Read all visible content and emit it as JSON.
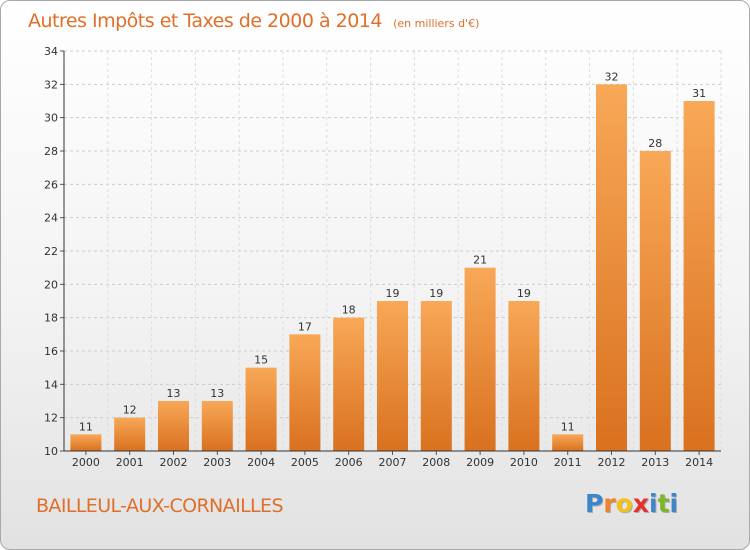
{
  "header": {
    "title": "Autres Impôts et Taxes de 2000 à 2014",
    "subtitle": "(en milliers d'€)"
  },
  "footer": {
    "commune": "BAILLEUL-AUX-CORNAILLES",
    "logo_letters": [
      "P",
      "r",
      "o",
      "x",
      "i",
      "t",
      "i"
    ],
    "logo_colors": [
      "#3f86c9",
      "#f0832a",
      "#f3c21a",
      "#e4312e",
      "#3f86c9",
      "#7cb72b",
      "#3f86c9"
    ]
  },
  "colors": {
    "bar_light": "#f8a857",
    "bar_dark": "#d9711f",
    "title": "#df6f2a"
  },
  "chart_data": {
    "type": "bar",
    "title": "Autres Impôts et Taxes de 2000 à 2014",
    "subtitle": "(en milliers d'€)",
    "xlabel": "",
    "ylabel": "",
    "categories": [
      "2000",
      "2001",
      "2002",
      "2003",
      "2004",
      "2005",
      "2006",
      "2007",
      "2008",
      "2009",
      "2010",
      "2011",
      "2012",
      "2013",
      "2014"
    ],
    "values": [
      11,
      12,
      13,
      13,
      15,
      17,
      18,
      19,
      19,
      21,
      19,
      11,
      32,
      28,
      31
    ],
    "ylim": [
      10,
      34
    ],
    "yticks": [
      10,
      12,
      14,
      16,
      18,
      20,
      22,
      24,
      26,
      28,
      30,
      32,
      34
    ],
    "grid": true,
    "data_labels": true,
    "legend": "none"
  }
}
